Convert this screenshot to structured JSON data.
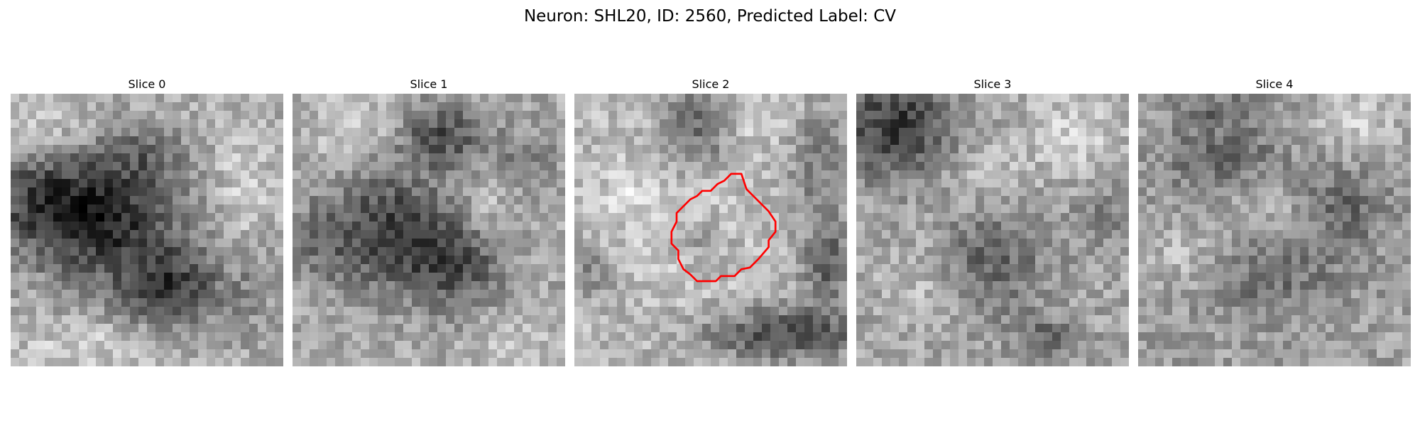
{
  "figure": {
    "title": "Neuron: SHL20, ID: 2560, Predicted Label: CV"
  },
  "panels": [
    {
      "label": "Slice 0",
      "has_contour": false
    },
    {
      "label": "Slice 1",
      "has_contour": false
    },
    {
      "label": "Slice 2",
      "has_contour": true
    },
    {
      "label": "Slice 3",
      "has_contour": false
    },
    {
      "label": "Slice 4",
      "has_contour": false
    }
  ],
  "colors": {
    "contour": "#ff0000",
    "background": "#ffffff",
    "colormap": "gray"
  }
}
